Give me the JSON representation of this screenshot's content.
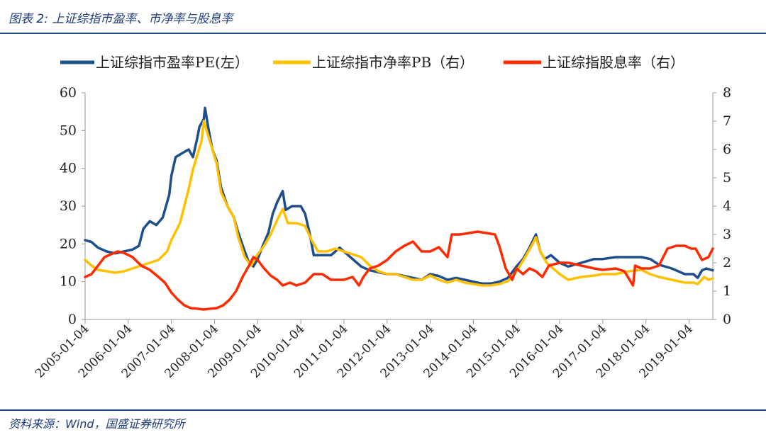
{
  "header": {
    "figure_title": "图表 2:  上证综指市盈率、市净率与股息率"
  },
  "footer": {
    "source": "资料来源：Wind，国盛证券研究所"
  },
  "colors": {
    "pe": "#1f4e8c",
    "pb": "#ffc000",
    "dy": "#ff2a00",
    "rule": "#1f4e8c"
  },
  "chart_data": {
    "type": "line",
    "title": "",
    "legend_position": "top",
    "categories": [
      "2005-01-04",
      "2006-01-04",
      "2007-01-04",
      "2008-01-04",
      "2009-01-04",
      "2010-01-04",
      "2011-01-04",
      "2012-01-04",
      "2013-01-04",
      "2014-01-04",
      "2015-01-04",
      "2016-01-04",
      "2017-01-04",
      "2018-01-04",
      "2019-01-04"
    ],
    "y_left": {
      "min": 0,
      "max": 60,
      "ticks": [
        "0",
        "10",
        "20",
        "30",
        "40",
        "50",
        "60"
      ]
    },
    "y_right": {
      "min": 0,
      "max": 8,
      "ticks": [
        "0",
        "1",
        "2",
        "3",
        "4",
        "5",
        "6",
        "7",
        "8"
      ]
    },
    "x_range": [
      2005.0,
      2019.55
    ],
    "series": [
      {
        "name": "上证综指市盈率PE(左）",
        "axis": "left",
        "color": "#1f4e8c",
        "points": [
          [
            2005.0,
            21
          ],
          [
            2005.15,
            20.5
          ],
          [
            2005.3,
            19
          ],
          [
            2005.5,
            18
          ],
          [
            2005.7,
            17.5
          ],
          [
            2005.9,
            18
          ],
          [
            2006.1,
            18.5
          ],
          [
            2006.25,
            19.5
          ],
          [
            2006.35,
            24
          ],
          [
            2006.5,
            26
          ],
          [
            2006.65,
            25
          ],
          [
            2006.8,
            27
          ],
          [
            2006.95,
            33
          ],
          [
            2007.0,
            38
          ],
          [
            2007.1,
            43
          ],
          [
            2007.25,
            44
          ],
          [
            2007.4,
            45
          ],
          [
            2007.5,
            43
          ],
          [
            2007.6,
            48
          ],
          [
            2007.65,
            51
          ],
          [
            2007.75,
            53
          ],
          [
            2007.78,
            56
          ],
          [
            2007.85,
            51
          ],
          [
            2007.95,
            45
          ],
          [
            2008.05,
            42
          ],
          [
            2008.15,
            35
          ],
          [
            2008.3,
            30
          ],
          [
            2008.45,
            27
          ],
          [
            2008.55,
            23
          ],
          [
            2008.7,
            18
          ],
          [
            2008.8,
            15
          ],
          [
            2008.9,
            14
          ],
          [
            2009.0,
            16
          ],
          [
            2009.1,
            19
          ],
          [
            2009.25,
            23
          ],
          [
            2009.35,
            28
          ],
          [
            2009.45,
            31
          ],
          [
            2009.58,
            34
          ],
          [
            2009.65,
            29
          ],
          [
            2009.8,
            30
          ],
          [
            2010.0,
            30
          ],
          [
            2010.1,
            28
          ],
          [
            2010.2,
            23
          ],
          [
            2010.3,
            17
          ],
          [
            2010.5,
            17
          ],
          [
            2010.7,
            17
          ],
          [
            2010.9,
            19
          ],
          [
            2011.0,
            18
          ],
          [
            2011.2,
            16
          ],
          [
            2011.4,
            14
          ],
          [
            2011.6,
            13
          ],
          [
            2011.8,
            12.5
          ],
          [
            2012.0,
            12
          ],
          [
            2012.2,
            12
          ],
          [
            2012.4,
            11.5
          ],
          [
            2012.6,
            11
          ],
          [
            2012.8,
            10.5
          ],
          [
            2013.0,
            12
          ],
          [
            2013.2,
            11.5
          ],
          [
            2013.4,
            10.5
          ],
          [
            2013.6,
            11
          ],
          [
            2013.8,
            10.5
          ],
          [
            2014.0,
            10
          ],
          [
            2014.2,
            9.5
          ],
          [
            2014.4,
            9.5
          ],
          [
            2014.6,
            10
          ],
          [
            2014.8,
            11
          ],
          [
            2015.0,
            14
          ],
          [
            2015.15,
            16
          ],
          [
            2015.3,
            19
          ],
          [
            2015.45,
            22.5
          ],
          [
            2015.55,
            18
          ],
          [
            2015.65,
            16
          ],
          [
            2015.8,
            17
          ],
          [
            2016.0,
            15
          ],
          [
            2016.2,
            14
          ],
          [
            2016.5,
            15
          ],
          [
            2016.8,
            16
          ],
          [
            2017.0,
            16
          ],
          [
            2017.3,
            16.5
          ],
          [
            2017.6,
            16.5
          ],
          [
            2017.9,
            16.5
          ],
          [
            2018.1,
            16
          ],
          [
            2018.3,
            14.5
          ],
          [
            2018.6,
            13.5
          ],
          [
            2018.9,
            12
          ],
          [
            2019.1,
            12
          ],
          [
            2019.2,
            11
          ],
          [
            2019.3,
            13
          ],
          [
            2019.4,
            13.5
          ],
          [
            2019.55,
            13
          ]
        ]
      },
      {
        "name": "上证综指市净率PB（右）",
        "axis": "right",
        "color": "#ffc000",
        "points": [
          [
            2005.0,
            2.1
          ],
          [
            2005.15,
            1.9
          ],
          [
            2005.3,
            1.75
          ],
          [
            2005.5,
            1.7
          ],
          [
            2005.7,
            1.65
          ],
          [
            2005.9,
            1.7
          ],
          [
            2006.1,
            1.8
          ],
          [
            2006.3,
            1.9
          ],
          [
            2006.5,
            2.0
          ],
          [
            2006.7,
            2.1
          ],
          [
            2006.9,
            2.4
          ],
          [
            2007.0,
            2.8
          ],
          [
            2007.2,
            3.4
          ],
          [
            2007.4,
            4.6
          ],
          [
            2007.5,
            5.3
          ],
          [
            2007.6,
            5.8
          ],
          [
            2007.7,
            6.3
          ],
          [
            2007.75,
            7.0
          ],
          [
            2007.85,
            6.5
          ],
          [
            2007.95,
            6.0
          ],
          [
            2008.05,
            5.5
          ],
          [
            2008.15,
            4.5
          ],
          [
            2008.3,
            4.0
          ],
          [
            2008.45,
            3.6
          ],
          [
            2008.55,
            2.9
          ],
          [
            2008.7,
            2.2
          ],
          [
            2008.85,
            1.9
          ],
          [
            2009.0,
            2.3
          ],
          [
            2009.15,
            2.6
          ],
          [
            2009.3,
            3.0
          ],
          [
            2009.45,
            3.5
          ],
          [
            2009.58,
            3.9
          ],
          [
            2009.7,
            3.4
          ],
          [
            2009.9,
            3.4
          ],
          [
            2010.1,
            3.3
          ],
          [
            2010.25,
            2.8
          ],
          [
            2010.4,
            2.4
          ],
          [
            2010.6,
            2.4
          ],
          [
            2010.8,
            2.5
          ],
          [
            2011.0,
            2.4
          ],
          [
            2011.2,
            2.3
          ],
          [
            2011.4,
            2.2
          ],
          [
            2011.6,
            1.9
          ],
          [
            2011.8,
            1.7
          ],
          [
            2012.0,
            1.6
          ],
          [
            2012.2,
            1.6
          ],
          [
            2012.4,
            1.5
          ],
          [
            2012.6,
            1.4
          ],
          [
            2012.8,
            1.4
          ],
          [
            2013.0,
            1.55
          ],
          [
            2013.2,
            1.4
          ],
          [
            2013.4,
            1.3
          ],
          [
            2013.6,
            1.4
          ],
          [
            2013.8,
            1.3
          ],
          [
            2014.0,
            1.25
          ],
          [
            2014.2,
            1.2
          ],
          [
            2014.4,
            1.2
          ],
          [
            2014.6,
            1.25
          ],
          [
            2014.8,
            1.35
          ],
          [
            2015.0,
            1.7
          ],
          [
            2015.2,
            2.2
          ],
          [
            2015.35,
            2.6
          ],
          [
            2015.45,
            2.9
          ],
          [
            2015.55,
            2.4
          ],
          [
            2015.7,
            2.0
          ],
          [
            2015.85,
            1.8
          ],
          [
            2016.0,
            1.6
          ],
          [
            2016.2,
            1.4
          ],
          [
            2016.5,
            1.5
          ],
          [
            2016.8,
            1.55
          ],
          [
            2017.0,
            1.6
          ],
          [
            2017.3,
            1.6
          ],
          [
            2017.6,
            1.7
          ],
          [
            2017.9,
            1.75
          ],
          [
            2018.1,
            1.6
          ],
          [
            2018.3,
            1.5
          ],
          [
            2018.6,
            1.4
          ],
          [
            2018.9,
            1.3
          ],
          [
            2019.1,
            1.3
          ],
          [
            2019.2,
            1.25
          ],
          [
            2019.35,
            1.5
          ],
          [
            2019.45,
            1.4
          ],
          [
            2019.55,
            1.45
          ]
        ]
      },
      {
        "name": "上证综指股息率（右）",
        "axis": "right",
        "color": "#ff2a00",
        "points": [
          [
            2005.0,
            1.5
          ],
          [
            2005.15,
            1.6
          ],
          [
            2005.3,
            1.9
          ],
          [
            2005.45,
            2.2
          ],
          [
            2005.6,
            2.3
          ],
          [
            2005.75,
            2.4
          ],
          [
            2005.9,
            2.35
          ],
          [
            2006.1,
            2.2
          ],
          [
            2006.3,
            1.9
          ],
          [
            2006.5,
            1.75
          ],
          [
            2006.7,
            1.5
          ],
          [
            2006.85,
            1.3
          ],
          [
            2007.0,
            0.95
          ],
          [
            2007.15,
            0.7
          ],
          [
            2007.3,
            0.5
          ],
          [
            2007.45,
            0.4
          ],
          [
            2007.6,
            0.38
          ],
          [
            2007.75,
            0.35
          ],
          [
            2007.9,
            0.38
          ],
          [
            2008.05,
            0.4
          ],
          [
            2008.2,
            0.5
          ],
          [
            2008.35,
            0.7
          ],
          [
            2008.5,
            1.0
          ],
          [
            2008.65,
            1.5
          ],
          [
            2008.8,
            1.9
          ],
          [
            2008.9,
            2.2
          ],
          [
            2009.0,
            2.1
          ],
          [
            2009.15,
            1.8
          ],
          [
            2009.3,
            1.55
          ],
          [
            2009.45,
            1.4
          ],
          [
            2009.58,
            1.2
          ],
          [
            2009.75,
            1.3
          ],
          [
            2009.9,
            1.2
          ],
          [
            2010.1,
            1.3
          ],
          [
            2010.3,
            1.6
          ],
          [
            2010.5,
            1.6
          ],
          [
            2010.7,
            1.4
          ],
          [
            2010.9,
            1.4
          ],
          [
            2011.0,
            1.4
          ],
          [
            2011.2,
            1.5
          ],
          [
            2011.35,
            1.2
          ],
          [
            2011.45,
            1.5
          ],
          [
            2011.6,
            1.8
          ],
          [
            2011.8,
            1.9
          ],
          [
            2012.0,
            2.1
          ],
          [
            2012.2,
            2.4
          ],
          [
            2012.4,
            2.6
          ],
          [
            2012.6,
            2.75
          ],
          [
            2012.8,
            2.4
          ],
          [
            2013.0,
            2.4
          ],
          [
            2013.2,
            2.55
          ],
          [
            2013.4,
            2.2
          ],
          [
            2013.5,
            3.0
          ],
          [
            2013.7,
            3.0
          ],
          [
            2013.9,
            3.05
          ],
          [
            2014.1,
            3.1
          ],
          [
            2014.3,
            3.05
          ],
          [
            2014.5,
            3.0
          ],
          [
            2014.6,
            2.6
          ],
          [
            2014.75,
            1.8
          ],
          [
            2014.9,
            1.4
          ],
          [
            2015.0,
            1.8
          ],
          [
            2015.15,
            1.6
          ],
          [
            2015.3,
            1.8
          ],
          [
            2015.45,
            1.7
          ],
          [
            2015.6,
            1.5
          ],
          [
            2015.75,
            1.9
          ],
          [
            2016.0,
            2.0
          ],
          [
            2016.2,
            2.0
          ],
          [
            2016.5,
            1.9
          ],
          [
            2016.8,
            1.8
          ],
          [
            2017.0,
            1.75
          ],
          [
            2017.3,
            1.8
          ],
          [
            2017.5,
            1.7
          ],
          [
            2017.7,
            1.2
          ],
          [
            2017.75,
            1.9
          ],
          [
            2017.9,
            1.8
          ],
          [
            2018.1,
            1.8
          ],
          [
            2018.3,
            1.9
          ],
          [
            2018.5,
            2.5
          ],
          [
            2018.7,
            2.6
          ],
          [
            2018.9,
            2.6
          ],
          [
            2019.05,
            2.5
          ],
          [
            2019.15,
            2.5
          ],
          [
            2019.3,
            2.1
          ],
          [
            2019.45,
            2.2
          ],
          [
            2019.55,
            2.5
          ]
        ]
      }
    ]
  }
}
